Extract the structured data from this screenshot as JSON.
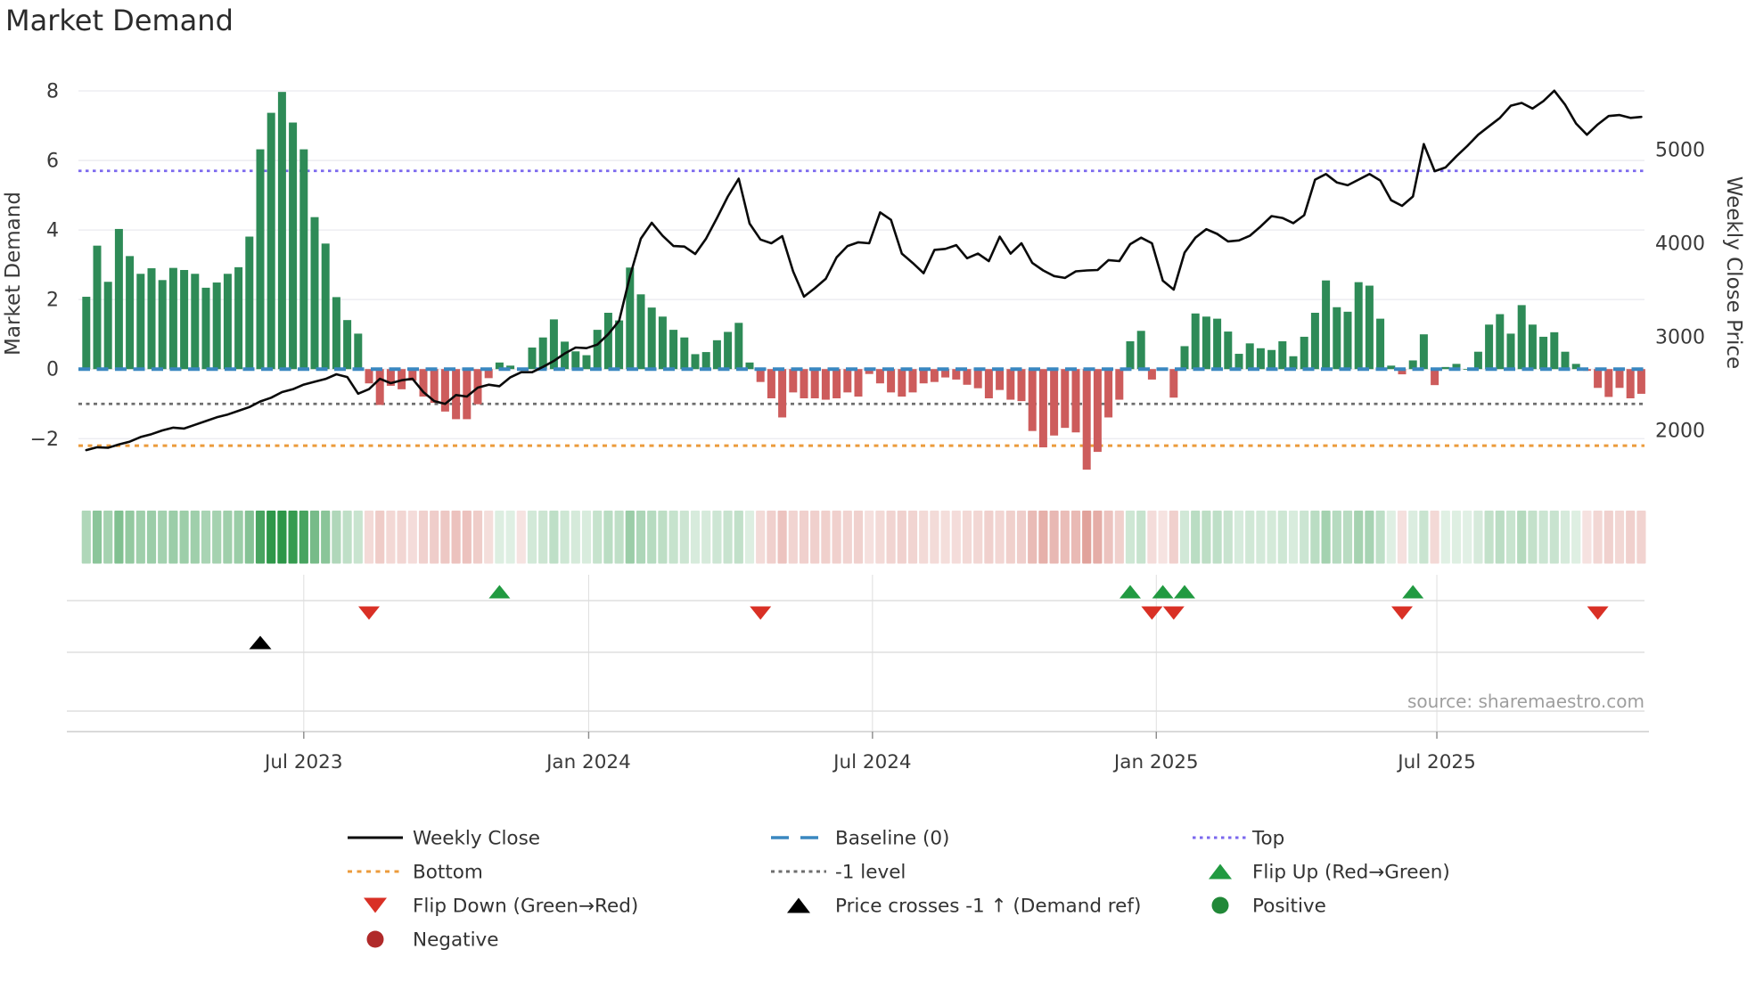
{
  "title": "Market Demand",
  "source": "source: sharemaestro.com",
  "colors": {
    "bar_positive": "#2e8b57",
    "bar_negative": "#cd5c5c",
    "price_line": "#0a0a0a",
    "baseline": "#3a87c0",
    "top_line": "#7b68ee",
    "bottom_line": "#eb9b3c",
    "minus1_line": "#6e6e6e",
    "flip_up": "#219a41",
    "flip_down": "#d93025",
    "price_cross": "#000000",
    "positive_dot": "#218838",
    "negative_dot": "#b02a2a",
    "heat_green": "#2c9647",
    "heat_red": "#c0392b",
    "grid": "#eaeaef",
    "panel_line": "#cfcfcf",
    "tick_text": "#3a3a3a",
    "source_text": "#9e9e9e"
  },
  "chart_data": {
    "type": "bar+line+heatmap",
    "x_unit": "week",
    "x_tick_labels": [
      "Jul 2023",
      "Jan 2024",
      "Jul 2024",
      "Jan 2025",
      "Jul 2025"
    ],
    "x_tick_weeks": [
      20,
      46.2,
      72.3,
      98.4,
      124.2
    ],
    "left_axis": {
      "label": "Market Demand",
      "ticks": [
        "8",
        "6",
        "4",
        "2",
        "0",
        "−2"
      ],
      "tick_values": [
        8,
        6,
        4,
        2,
        0,
        -2
      ],
      "ylim": [
        -3.3,
        8.82
      ]
    },
    "right_axis": {
      "label": "Weekly Close Price",
      "ticks": [
        "5000",
        "4000",
        "3000",
        "2000"
      ],
      "tick_values": [
        5000,
        4000,
        3000,
        2000
      ],
      "ylim": [
        1429,
        5933
      ]
    },
    "series": [
      {
        "name": "Market Demand",
        "type": "bar",
        "axis": "left",
        "values": [
          2.08,
          3.55,
          2.51,
          4.03,
          3.25,
          2.74,
          2.9,
          2.56,
          2.91,
          2.85,
          2.74,
          2.34,
          2.49,
          2.74,
          2.93,
          3.81,
          6.32,
          7.37,
          7.97,
          7.09,
          6.32,
          4.37,
          3.61,
          2.07,
          1.41,
          1.02,
          -0.41,
          -1.03,
          -0.48,
          -0.58,
          -0.33,
          -0.79,
          -0.97,
          -1.22,
          -1.44,
          -1.44,
          -1.01,
          -0.26,
          0.19,
          0.1,
          -0.02,
          0.62,
          0.91,
          1.43,
          0.79,
          0.51,
          0.4,
          1.13,
          1.62,
          1.4,
          2.92,
          2.15,
          1.77,
          1.51,
          1.13,
          0.91,
          0.43,
          0.49,
          0.83,
          1.07,
          1.33,
          0.19,
          -0.37,
          -0.84,
          -1.39,
          -0.67,
          -0.84,
          -0.84,
          -0.88,
          -0.84,
          -0.67,
          -0.79,
          -0.14,
          -0.41,
          -0.67,
          -0.79,
          -0.67,
          -0.41,
          -0.37,
          -0.24,
          -0.3,
          -0.45,
          -0.55,
          -0.84,
          -0.6,
          -0.88,
          -0.92,
          -1.78,
          -2.25,
          -1.91,
          -1.69,
          -1.82,
          -2.89,
          -2.38,
          -1.39,
          -0.88,
          0.8,
          1.1,
          -0.3,
          -0.02,
          -0.82,
          0.66,
          1.6,
          1.51,
          1.45,
          1.08,
          0.44,
          0.74,
          0.6,
          0.55,
          0.8,
          0.37,
          0.93,
          1.62,
          2.55,
          1.78,
          1.65,
          2.5,
          2.4,
          1.45,
          0.1,
          -0.15,
          0.25,
          1.0,
          -0.46,
          0.06,
          0.15,
          0.0,
          0.5,
          1.28,
          1.58,
          1.02,
          1.84,
          1.28,
          0.93,
          1.06,
          0.5,
          0.15,
          -0.05,
          -0.54,
          -0.8,
          -0.54,
          -0.84,
          -0.71
        ]
      },
      {
        "name": "Weekly Close",
        "type": "line",
        "axis": "right",
        "values": [
          1790,
          1820,
          1815,
          1850,
          1880,
          1930,
          1960,
          2000,
          2030,
          2020,
          2060,
          2100,
          2140,
          2170,
          2210,
          2250,
          2310,
          2350,
          2410,
          2440,
          2490,
          2520,
          2550,
          2600,
          2571,
          2393,
          2441,
          2552,
          2505,
          2536,
          2552,
          2410,
          2314,
          2283,
          2378,
          2362,
          2457,
          2489,
          2473,
          2568,
          2622,
          2622,
          2679,
          2743,
          2822,
          2886,
          2879,
          2917,
          3029,
          3171,
          3650,
          4050,
          4219,
          4080,
          3970,
          3965,
          3886,
          4050,
          4270,
          4500,
          4690,
          4210,
          4040,
          4000,
          4076,
          3700,
          3430,
          3520,
          3620,
          3850,
          3970,
          4010,
          4000,
          4330,
          4250,
          3890,
          3790,
          3680,
          3930,
          3940,
          3980,
          3840,
          3890,
          3810,
          4070,
          3890,
          4000,
          3790,
          3710,
          3650,
          3630,
          3700,
          3710,
          3714,
          3820,
          3810,
          3990,
          4060,
          4000,
          3600,
          3505,
          3900,
          4060,
          4150,
          4100,
          4020,
          4030,
          4080,
          4180,
          4290,
          4270,
          4215,
          4300,
          4680,
          4740,
          4650,
          4620,
          4680,
          4740,
          4670,
          4460,
          4400,
          4500,
          5060,
          4770,
          4810,
          4930,
          5040,
          5160,
          5250,
          5340,
          5470,
          5500,
          5440,
          5520,
          5630,
          5480,
          5280,
          5160,
          5270,
          5360,
          5370,
          5340,
          5350
        ]
      }
    ],
    "reference_lines": [
      {
        "name": "Baseline (0)",
        "axis": "left",
        "value": 0,
        "style": "dashed",
        "color_key": "baseline"
      },
      {
        "name": "Top",
        "axis": "left",
        "value": 5.7,
        "style": "dotted",
        "color_key": "top_line"
      },
      {
        "name": "Bottom",
        "axis": "left",
        "value": -2.2,
        "style": "dotted",
        "color_key": "bottom_line"
      },
      {
        "name": "-1 level",
        "axis": "left",
        "value": -1,
        "style": "dotted",
        "color_key": "minus1_line"
      }
    ],
    "markers": {
      "flip_up": {
        "label": "Flip Up (Red→Green)",
        "weeks": [
          38,
          96,
          99,
          101,
          122
        ]
      },
      "flip_down": {
        "label": "Flip Down (Green→Red)",
        "weeks": [
          26,
          62,
          98,
          100,
          121,
          139
        ]
      },
      "price_cross": {
        "label": "Price crosses -1 ↑ (Demand ref)",
        "weeks": [
          16
        ]
      }
    },
    "heatmap": {
      "description": "weekly demand intensity strip (green positive, red negative)"
    }
  },
  "legend": {
    "columns": [
      [
        {
          "swatch": "line",
          "label": "Weekly Close"
        },
        {
          "swatch": "dotted-orange",
          "label": "Bottom"
        },
        {
          "swatch": "tri-down-red",
          "label": "Flip Down (Green→Red)"
        },
        {
          "swatch": "dot-darkred",
          "label": "Negative"
        }
      ],
      [
        {
          "swatch": "dashed-blue",
          "label": "Baseline (0)"
        },
        {
          "swatch": "dotted-gray",
          "label": "-1 level"
        },
        {
          "swatch": "tri-up-black",
          "label": "Price crosses -1 ↑ (Demand ref)"
        }
      ],
      [
        {
          "swatch": "dotted-purple",
          "label": "Top"
        },
        {
          "swatch": "tri-up-green",
          "label": "Flip Up (Red→Green)"
        },
        {
          "swatch": "dot-green",
          "label": "Positive"
        }
      ]
    ]
  }
}
